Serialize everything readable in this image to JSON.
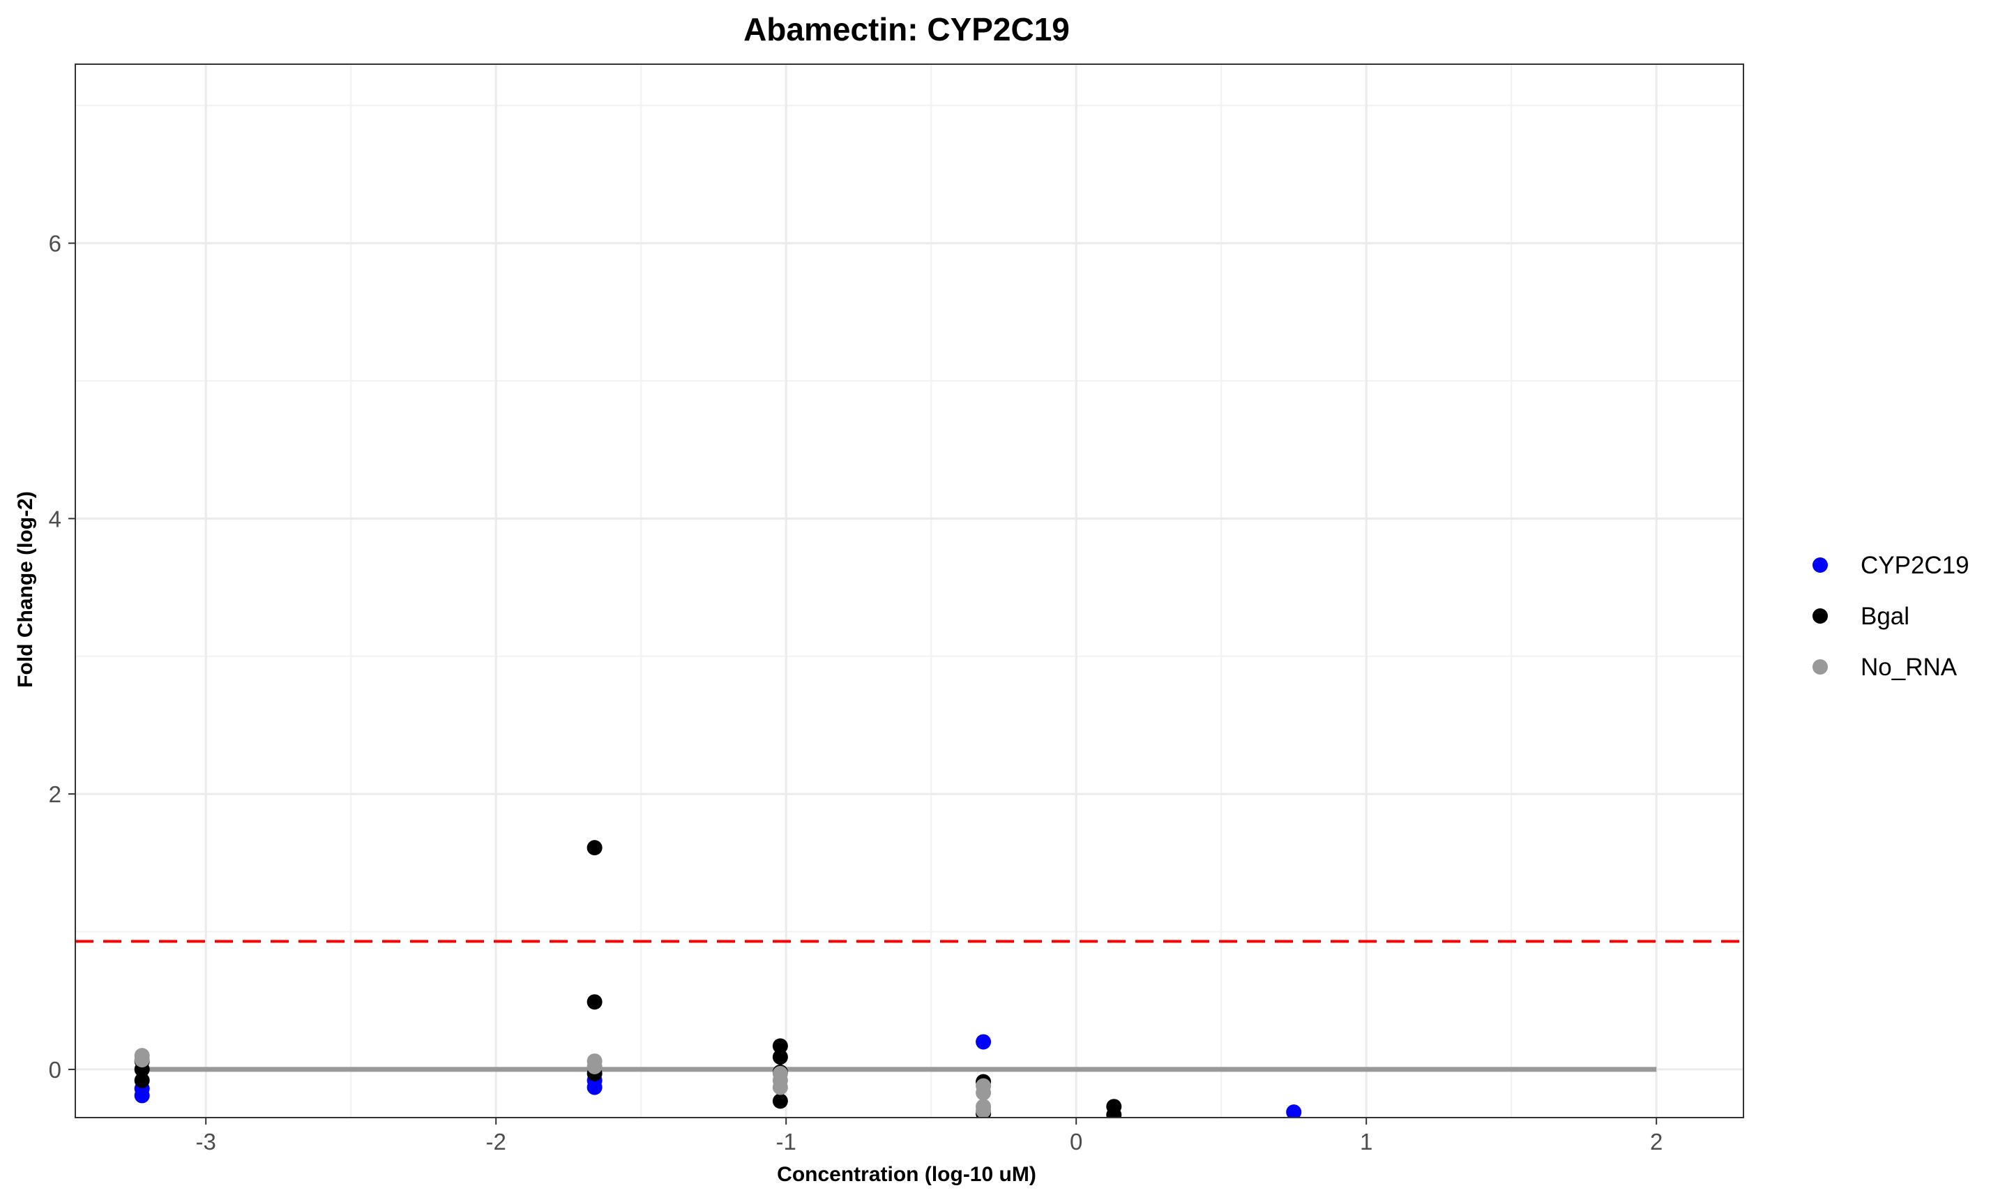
{
  "chart_data": {
    "type": "scatter",
    "title": "Abamectin: CYP2C19",
    "xlabel": "Concentration (log-10 uM)",
    "ylabel": "Fold Change (log-2)",
    "xlim": [
      -3.45,
      2.3
    ],
    "ylim": [
      -0.35,
      7.3
    ],
    "x_ticks": [
      -3,
      -2,
      -1,
      0,
      1,
      2
    ],
    "y_ticks": [
      0,
      2,
      4,
      6
    ],
    "grid": true,
    "legend_position": "right",
    "series": [
      {
        "name": "CYP2C19",
        "color": "#0000ff",
        "x": [
          -3.22,
          -3.22,
          -1.66,
          -1.66,
          -0.32,
          0.75
        ],
        "y": [
          -0.19,
          -0.14,
          -0.13,
          -0.08,
          0.2,
          -0.31
        ]
      },
      {
        "name": "Bgal",
        "color": "#000000",
        "x": [
          -3.22,
          -3.22,
          -3.22,
          -1.66,
          -1.66,
          -1.66,
          -1.02,
          -1.02,
          -1.02,
          -1.02,
          -0.32,
          -0.32,
          0.13,
          0.13
        ],
        "y": [
          -0.08,
          0.0,
          0.06,
          1.61,
          0.49,
          -0.03,
          0.17,
          0.09,
          -0.02,
          -0.23,
          -0.09,
          -0.32,
          -0.27,
          -0.33
        ]
      },
      {
        "name": "No_RNA",
        "color": "#999999",
        "x": [
          -3.22,
          -3.22,
          -1.66,
          -1.66,
          -1.02,
          -1.02,
          -1.02,
          -0.32,
          -0.32,
          -0.32,
          -0.32
        ],
        "y": [
          0.1,
          0.07,
          0.06,
          0.02,
          -0.03,
          -0.08,
          -0.13,
          -0.12,
          -0.17,
          -0.27,
          -0.3
        ]
      }
    ],
    "threshold_line": {
      "y": 0.93,
      "color": "#ff0000",
      "style": "dashed"
    },
    "baseline_line": {
      "x": [
        -3.22,
        2.0
      ],
      "y": 0,
      "color": "#999999",
      "style": "solid"
    }
  }
}
